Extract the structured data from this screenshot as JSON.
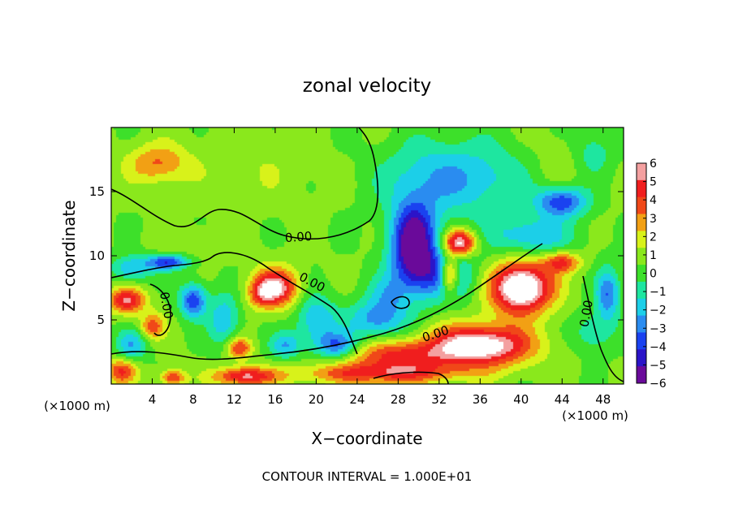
{
  "chart_data": {
    "type": "heatmap",
    "title": "zonal velocity",
    "xlabel": "X−coordinate",
    "ylabel": "Z−coordinate",
    "x_unit": "(×1000 m)",
    "z_unit": "(×1000 m)",
    "xlim": [
      0,
      50
    ],
    "ylim": [
      0,
      20
    ],
    "x_ticks": [
      4,
      8,
      12,
      16,
      20,
      24,
      28,
      32,
      36,
      40,
      44,
      48
    ],
    "y_ticks": [
      5,
      10,
      15
    ],
    "colorbar": {
      "ticks": [
        "6",
        "5",
        "4",
        "3",
        "2",
        "1",
        "0",
        "−1",
        "−2",
        "−3",
        "−4",
        "−5",
        "−6"
      ],
      "range": [
        -6,
        6
      ]
    },
    "contour_labels": [
      "0.00",
      "0.00",
      "0.00",
      "0.00",
      "0.00"
    ],
    "footer": "CONTOUR INTERVAL = 1.000E+01",
    "grid": false,
    "legend": "colorbar-right",
    "features": [
      {
        "x": 4.5,
        "z": 17.2,
        "u": 3.0,
        "sx": 3.0,
        "sz": 1.5
      },
      {
        "x": 14,
        "z": 17,
        "u": 0.8,
        "sx": 6,
        "sz": 3
      },
      {
        "x": 44,
        "z": 17,
        "u": 0.8,
        "sx": 4,
        "sz": 3
      },
      {
        "x": 31,
        "z": 16,
        "u": -2.5,
        "sx": 5,
        "sz": 3
      },
      {
        "x": 37,
        "z": 16,
        "u": -2.0,
        "sx": 5,
        "sz": 3
      },
      {
        "x": 44,
        "z": 14.2,
        "u": -5.0,
        "sx": 2.5,
        "sz": 1.2
      },
      {
        "x": 29.5,
        "z": 11,
        "u": -7.5,
        "sx": 2.2,
        "sz": 3.0
      },
      {
        "x": 32,
        "z": 8.5,
        "u": -4.0,
        "sx": 3.5,
        "sz": 2.0
      },
      {
        "x": 34,
        "z": 11,
        "u": 6.5,
        "sx": 1.6,
        "sz": 1.0
      },
      {
        "x": 33,
        "z": 8.5,
        "u": 6.0,
        "sx": 0.9,
        "sz": 1.4
      },
      {
        "x": 40,
        "z": 7.5,
        "u": 8.0,
        "sx": 3.0,
        "sz": 2.0
      },
      {
        "x": 44,
        "z": 9.5,
        "u": 4.0,
        "sx": 1.8,
        "sz": 0.8
      },
      {
        "x": 36,
        "z": 3,
        "u": 7.0,
        "sx": 5,
        "sz": 1.6
      },
      {
        "x": 28,
        "z": 2.2,
        "u": 4.0,
        "sx": 5,
        "sz": 1.2
      },
      {
        "x": 26,
        "z": 0.8,
        "u": 4.0,
        "sx": 8,
        "sz": 0.8
      },
      {
        "x": 16,
        "z": 7.5,
        "u": 6.0,
        "sx": 2.2,
        "sz": 1.5
      },
      {
        "x": 14.5,
        "z": 7,
        "u": 2.0,
        "sx": 1.2,
        "sz": 1.0
      },
      {
        "x": 1.5,
        "z": 6.5,
        "u": 5.0,
        "sx": 1.8,
        "sz": 1.0
      },
      {
        "x": 4,
        "z": 4.5,
        "u": 3.5,
        "sx": 1.2,
        "sz": 1.0
      },
      {
        "x": 12.5,
        "z": 2.8,
        "u": 4.0,
        "sx": 1.2,
        "sz": 0.8
      },
      {
        "x": 13,
        "z": 0.6,
        "u": 5.0,
        "sx": 3.0,
        "sz": 0.7
      },
      {
        "x": 1,
        "z": 1,
        "u": 4.0,
        "sx": 1.5,
        "sz": 1.0
      },
      {
        "x": 6,
        "z": 0.5,
        "u": 4.0,
        "sx": 1.2,
        "sz": 0.6
      },
      {
        "x": 8,
        "z": 6.5,
        "u": -5.0,
        "sx": 1.3,
        "sz": 1.3
      },
      {
        "x": 5.5,
        "z": 9.5,
        "u": -5.0,
        "sx": 2.0,
        "sz": 0.6
      },
      {
        "x": 2,
        "z": 9,
        "u": -3.0,
        "sx": 2.0,
        "sz": 1.0
      },
      {
        "x": 11,
        "z": 5,
        "u": -3.0,
        "sx": 1.5,
        "sz": 2.0
      },
      {
        "x": 20,
        "z": 5,
        "u": -3.0,
        "sx": 2.0,
        "sz": 2.0
      },
      {
        "x": 22,
        "z": 3,
        "u": -4.0,
        "sx": 2.0,
        "sz": 1.0
      },
      {
        "x": 26,
        "z": 5,
        "u": -3.5,
        "sx": 3.0,
        "sz": 1.5
      },
      {
        "x": 17,
        "z": 3,
        "u": -3.0,
        "sx": 1.5,
        "sz": 1.0
      },
      {
        "x": 2,
        "z": 3,
        "u": -3.0,
        "sx": 1.5,
        "sz": 1.2
      },
      {
        "x": 48.5,
        "z": 7,
        "u": -4.0,
        "sx": 1.2,
        "sz": 2.0
      },
      {
        "x": 47,
        "z": 4,
        "u": -2.0,
        "sx": 2.0,
        "sz": 1.5
      },
      {
        "x": 41,
        "z": 11.5,
        "u": -3.0,
        "sx": 4.0,
        "sz": 1.5
      },
      {
        "x": 47,
        "z": 18,
        "u": -2.0,
        "sx": 2.0,
        "sz": 2.0
      },
      {
        "x": 8.5,
        "z": 11,
        "u": 0.8,
        "sx": 4.0,
        "sz": 1.2
      },
      {
        "x": 27,
        "z": 7,
        "u": -2.0,
        "sx": 2.0,
        "sz": 1.5
      }
    ]
  }
}
